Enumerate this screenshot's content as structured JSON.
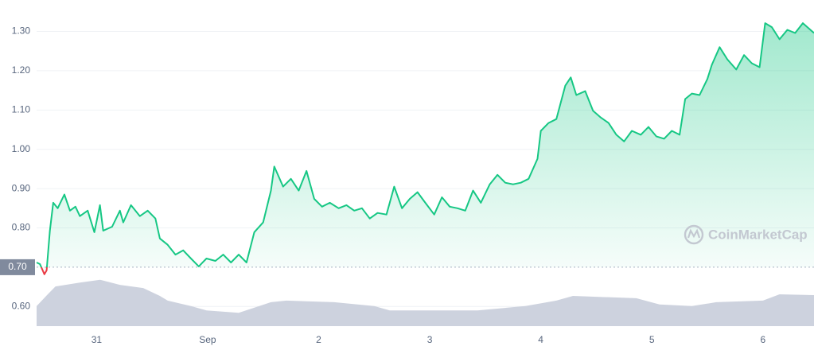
{
  "chart_data": {
    "type": "line",
    "x": [
      -0.54,
      -0.51,
      -0.47,
      -0.45,
      -0.42,
      -0.39,
      -0.35,
      -0.29,
      -0.24,
      -0.19,
      -0.15,
      -0.08,
      -0.02,
      0.03,
      0.06,
      0.14,
      0.21,
      0.24,
      0.31,
      0.39,
      0.46,
      0.53,
      0.57,
      0.64,
      0.71,
      0.78,
      0.85,
      0.92,
      0.99,
      1.07,
      1.14,
      1.21,
      1.28,
      1.35,
      1.42,
      1.5,
      1.57,
      1.6,
      1.68,
      1.75,
      1.82,
      1.89,
      1.96,
      2.03,
      2.1,
      2.18,
      2.25,
      2.32,
      2.39,
      2.46,
      2.53,
      2.61,
      2.68,
      2.75,
      2.82,
      2.89,
      2.96,
      3.04,
      3.11,
      3.18,
      3.25,
      3.32,
      3.39,
      3.46,
      3.54,
      3.61,
      3.68,
      3.75,
      3.82,
      3.89,
      3.97,
      4.0,
      4.07,
      4.14,
      4.22,
      4.27,
      4.32,
      4.4,
      4.47,
      4.54,
      4.61,
      4.68,
      4.75,
      4.82,
      4.9,
      4.97,
      5.04,
      5.11,
      5.18,
      5.25,
      5.3,
      5.36,
      5.43,
      5.5,
      5.54,
      5.61,
      5.68,
      5.76,
      5.83,
      5.9,
      5.97,
      6.02,
      6.08,
      6.15,
      6.22,
      6.29,
      6.36,
      6.46
    ],
    "values": [
      0.712,
      0.708,
      0.682,
      0.692,
      0.793,
      0.864,
      0.85,
      0.885,
      0.844,
      0.854,
      0.83,
      0.844,
      0.789,
      0.858,
      0.793,
      0.803,
      0.844,
      0.814,
      0.858,
      0.83,
      0.844,
      0.824,
      0.773,
      0.757,
      0.732,
      0.743,
      0.722,
      0.702,
      0.722,
      0.716,
      0.732,
      0.712,
      0.732,
      0.712,
      0.789,
      0.814,
      0.895,
      0.956,
      0.905,
      0.925,
      0.895,
      0.945,
      0.874,
      0.854,
      0.864,
      0.85,
      0.858,
      0.844,
      0.85,
      0.824,
      0.838,
      0.834,
      0.905,
      0.85,
      0.874,
      0.891,
      0.864,
      0.834,
      0.878,
      0.854,
      0.85,
      0.844,
      0.895,
      0.864,
      0.911,
      0.935,
      0.915,
      0.911,
      0.915,
      0.925,
      0.976,
      1.047,
      1.067,
      1.077,
      1.162,
      1.183,
      1.138,
      1.148,
      1.098,
      1.081,
      1.067,
      1.037,
      1.02,
      1.047,
      1.037,
      1.057,
      1.033,
      1.027,
      1.047,
      1.037,
      1.128,
      1.142,
      1.138,
      1.179,
      1.215,
      1.26,
      1.229,
      1.203,
      1.24,
      1.219,
      1.209,
      1.321,
      1.311,
      1.28,
      1.304,
      1.296,
      1.321,
      1.296
    ],
    "color": "#16c784",
    "below_color": "#ea3943",
    "baseline": {
      "value": 0.7,
      "label": "0.70"
    },
    "volume": {
      "x": [
        -0.54,
        -0.44,
        -0.37,
        -0.15,
        0.03,
        0.21,
        0.42,
        0.57,
        0.64,
        0.85,
        0.99,
        1.28,
        1.57,
        1.71,
        2.14,
        2.5,
        2.64,
        3.43,
        3.86,
        4.14,
        4.29,
        4.86,
        5.07,
        5.36,
        5.58,
        6.0,
        6.15,
        6.46
      ],
      "values": [
        0.601,
        0.631,
        0.651,
        0.661,
        0.668,
        0.655,
        0.647,
        0.627,
        0.615,
        0.601,
        0.59,
        0.584,
        0.611,
        0.615,
        0.611,
        0.601,
        0.59,
        0.59,
        0.601,
        0.615,
        0.627,
        0.621,
        0.605,
        0.601,
        0.611,
        0.615,
        0.631,
        0.629
      ],
      "color": "#cdd2de"
    },
    "xlim": [
      -0.54,
      6.46
    ],
    "xticks": [
      {
        "value": 0,
        "label": "31"
      },
      {
        "value": 1,
        "label": "Sep"
      },
      {
        "value": 2,
        "label": "2"
      },
      {
        "value": 3,
        "label": "3"
      },
      {
        "value": 4,
        "label": "4"
      },
      {
        "value": 5,
        "label": "5"
      },
      {
        "value": 6,
        "label": "6"
      }
    ],
    "ylim": [
      0.55,
      1.38
    ],
    "yticks": [
      {
        "value": 0.6,
        "label": "0.60"
      },
      {
        "value": 0.8,
        "label": "0.80"
      },
      {
        "value": 0.9,
        "label": "0.90"
      },
      {
        "value": 1.0,
        "label": "1.00"
      },
      {
        "value": 1.1,
        "label": "1.10"
      },
      {
        "value": 1.2,
        "label": "1.20"
      },
      {
        "value": 1.3,
        "label": "1.30"
      }
    ],
    "grid": true,
    "watermark": "CoinMarketCap"
  }
}
